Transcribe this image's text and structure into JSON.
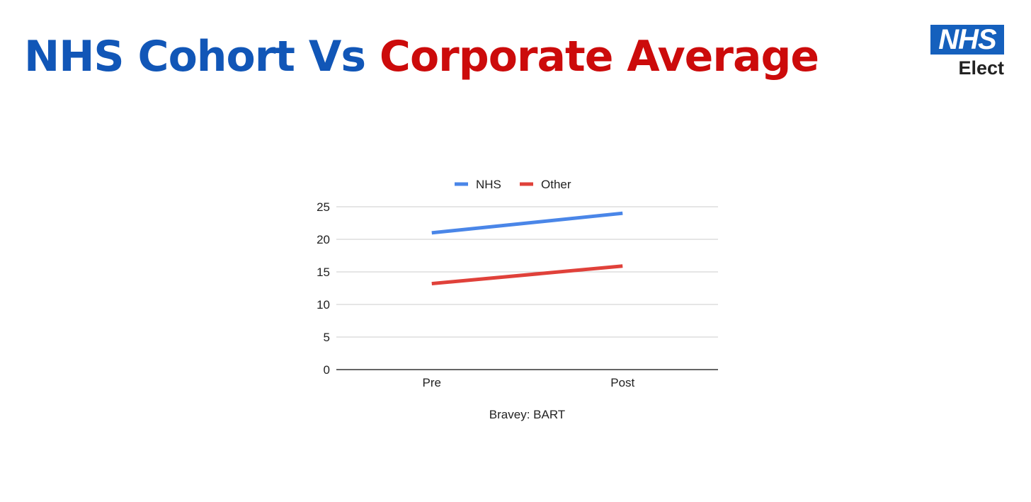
{
  "header": {
    "title_part1": "NHS Cohort Vs",
    "title_part2": "Corporate Average"
  },
  "logo": {
    "box_text": "NHS",
    "sub_text": "Elect",
    "color": "#1560bd"
  },
  "chart_data": {
    "type": "line",
    "categories": [
      "Pre",
      "Post"
    ],
    "series": [
      {
        "name": "NHS",
        "values": [
          21,
          24
        ],
        "color": "#4a86e8"
      },
      {
        "name": "Other",
        "values": [
          13.2,
          15.9
        ],
        "color": "#e0413a"
      }
    ],
    "yticks": [
      "0",
      "5",
      "10",
      "15",
      "20",
      "25"
    ],
    "ylim": [
      0,
      25
    ],
    "grid": true,
    "legend": "top-center",
    "caption": "Bravey: BART"
  }
}
